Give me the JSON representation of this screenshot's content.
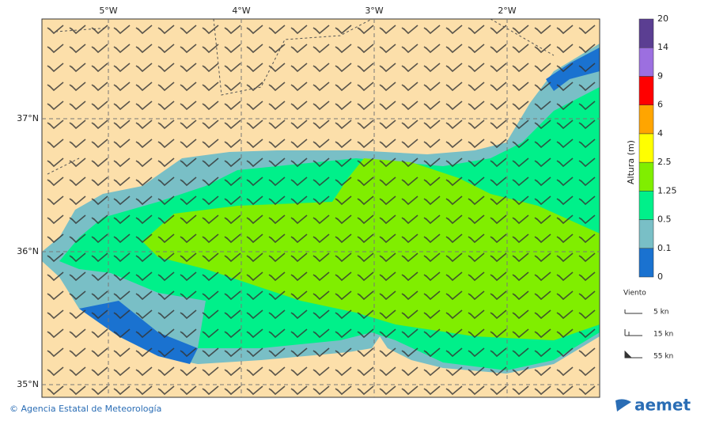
{
  "map": {
    "lon_ticks": [
      {
        "value": -5,
        "label": "5°W"
      },
      {
        "value": -4,
        "label": "4°W"
      },
      {
        "value": -3,
        "label": "3°W"
      },
      {
        "value": -2,
        "label": "2°W"
      }
    ],
    "lat_ticks": [
      {
        "value": 37,
        "label": "37°N"
      },
      {
        "value": 36,
        "label": "36°N"
      },
      {
        "value": 35,
        "label": "35°N"
      }
    ],
    "colorbar": {
      "label": "Altura (m)",
      "levels": [
        0,
        0.1,
        0.5,
        1.25,
        2.5,
        4,
        6,
        9,
        14,
        20
      ],
      "colors": [
        "#1a72d0",
        "#79bfc6",
        "#00f08a",
        "#80ee00",
        "#ffff00",
        "#ffa500",
        "#ff0000",
        "#9c6fe0",
        "#5b3e92"
      ]
    },
    "legend": {
      "title": "Viento",
      "items": [
        "5 kn",
        "15 kn",
        "55 kn"
      ]
    }
  },
  "footer": {
    "credit": "© Agencia Estatal de Meteorología",
    "logo": "aemet"
  }
}
